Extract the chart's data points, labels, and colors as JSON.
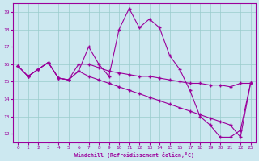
{
  "x": [
    0,
    1,
    2,
    3,
    4,
    5,
    6,
    7,
    8,
    9,
    10,
    11,
    12,
    13,
    14,
    15,
    16,
    17,
    18,
    19,
    20,
    21,
    22,
    23
  ],
  "line1": [
    15.9,
    15.3,
    15.7,
    16.1,
    15.2,
    15.1,
    15.6,
    17.0,
    16.0,
    15.3,
    18.0,
    19.2,
    18.1,
    18.6,
    18.1,
    16.5,
    15.7,
    14.5,
    13.0,
    12.5,
    11.8,
    11.8,
    12.2,
    14.9
  ],
  "line2": [
    15.9,
    15.3,
    15.7,
    16.1,
    15.2,
    15.1,
    16.0,
    16.0,
    15.8,
    15.6,
    15.5,
    15.4,
    15.3,
    15.3,
    15.2,
    15.1,
    15.0,
    14.9,
    14.9,
    14.8,
    14.8,
    14.7,
    14.9,
    14.9
  ],
  "line3": [
    15.9,
    15.3,
    15.7,
    16.1,
    15.2,
    15.1,
    15.6,
    15.3,
    15.1,
    14.9,
    14.7,
    14.5,
    14.3,
    14.1,
    13.9,
    13.7,
    13.5,
    13.3,
    13.1,
    12.9,
    12.7,
    12.5,
    11.8,
    14.9
  ],
  "color": "#9b009b",
  "bg_color": "#cce8f0",
  "grid_color": "#99cccc",
  "xlabel": "Windchill (Refroidissement éolien,°C)",
  "ylim": [
    11.5,
    19.5
  ],
  "xlim": [
    -0.5,
    23.5
  ],
  "yticks": [
    12,
    13,
    14,
    15,
    16,
    17,
    18,
    19
  ],
  "xticks": [
    0,
    1,
    2,
    3,
    4,
    5,
    6,
    7,
    8,
    9,
    10,
    11,
    12,
    13,
    14,
    15,
    16,
    17,
    18,
    19,
    20,
    21,
    22,
    23
  ],
  "figsize": [
    3.2,
    2.0
  ],
  "dpi": 100
}
